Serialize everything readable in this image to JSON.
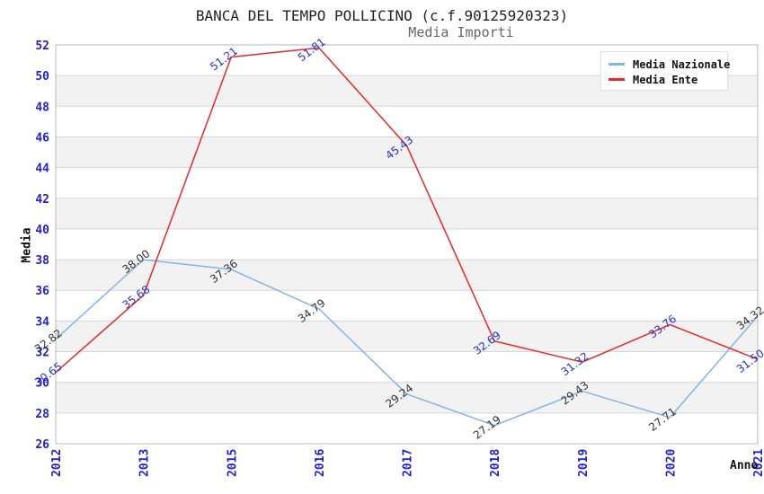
{
  "chart_data": {
    "type": "line",
    "title": "BANCA DEL TEMPO POLLICINO (c.f.90125920323)",
    "subtitle": "Media Importi",
    "xlabel": "Anno",
    "ylabel": "Media",
    "categories": [
      "2012",
      "2013",
      "2015",
      "2016",
      "2017",
      "2018",
      "2019",
      "2020",
      "2021"
    ],
    "series": [
      {
        "name": "Media Nazionale",
        "color": "#85B4E6",
        "label_color": "#333333",
        "values": [
          32.82,
          38.0,
          37.36,
          34.79,
          29.24,
          27.19,
          29.43,
          27.71,
          34.32
        ]
      },
      {
        "name": "Media Ente",
        "color": "#E62929",
        "label_color": "#2233CC",
        "values": [
          30.65,
          35.68,
          51.21,
          51.81,
          45.43,
          32.69,
          31.32,
          33.76,
          31.5
        ]
      }
    ],
    "ylim": [
      26,
      52
    ],
    "ytick_step": 2,
    "axis_tick_color": "#2222CC",
    "grid_band_color": "#f2f2f2",
    "gridline_color": "#d6d6d6",
    "plot_border_color": "#b9b9b9",
    "legend_position": "top-right",
    "grid": "horizontal-bands"
  }
}
